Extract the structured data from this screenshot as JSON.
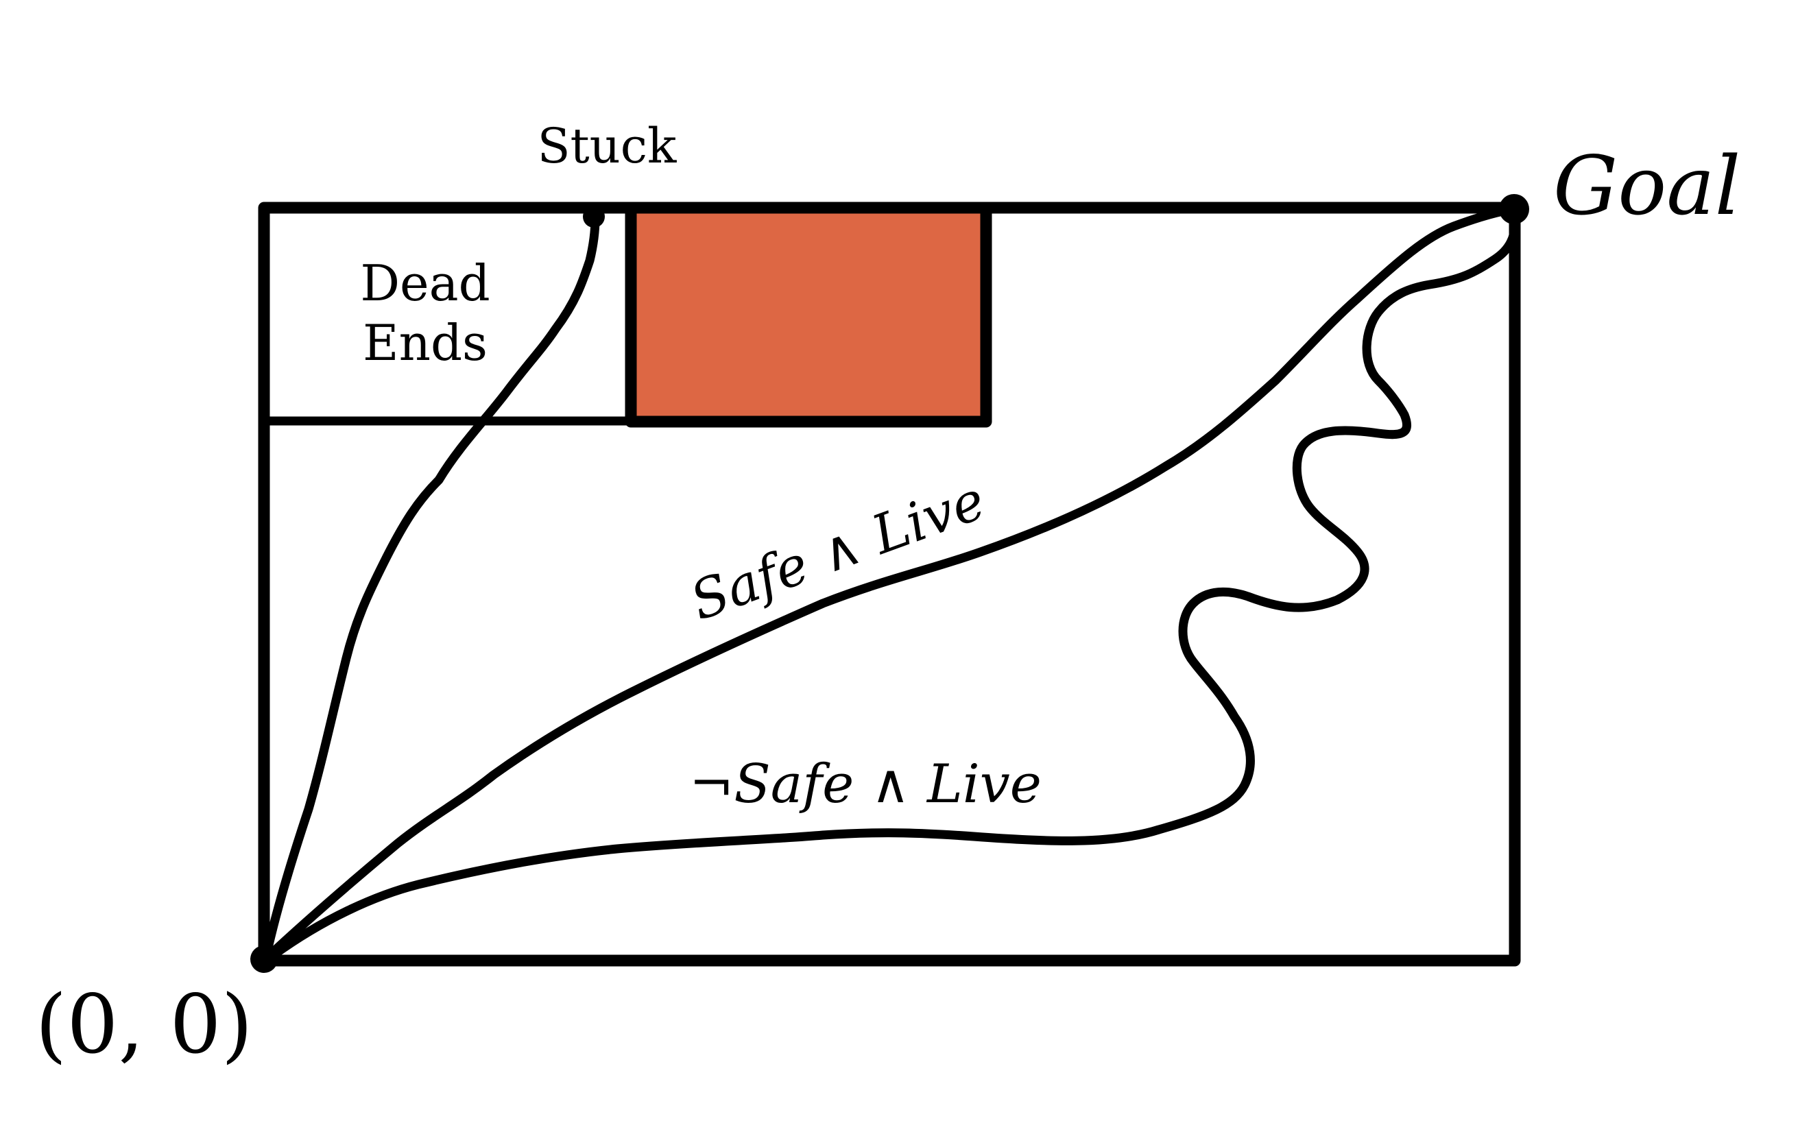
{
  "diagram": {
    "labels": {
      "stuck": "Stuck",
      "dead_ends_line1": "Dead",
      "dead_ends_line2": "Ends",
      "goal": "Goal",
      "origin": "(0, 0)",
      "safe_live": "Safe ∧ Live",
      "not_safe_live": "¬Safe ∧ Live"
    },
    "colors": {
      "stroke": "#000000",
      "unsafe_region": "#DD6744",
      "background": "#FFFFFF"
    }
  }
}
